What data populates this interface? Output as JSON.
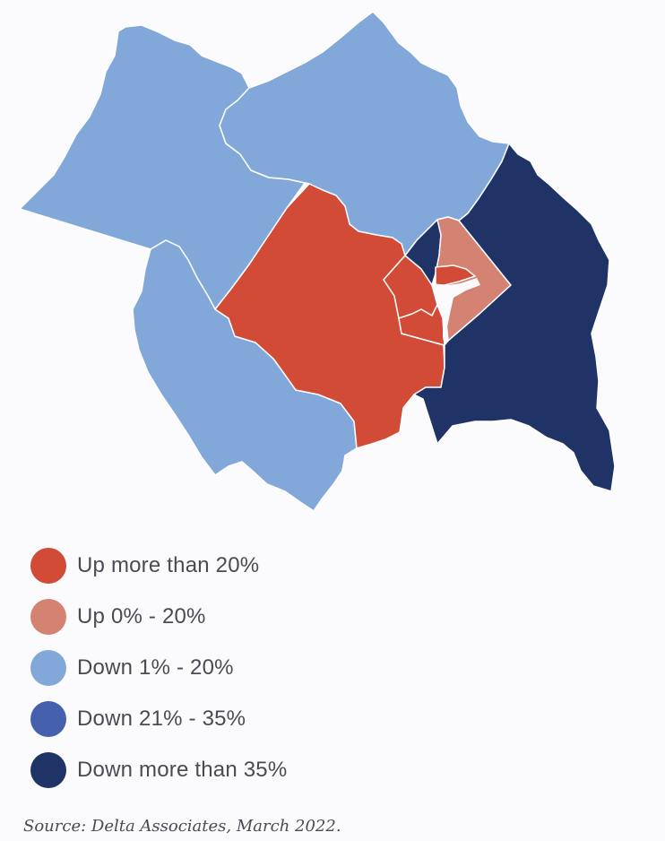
{
  "colors": {
    "up_more_than_20": "#d14b36",
    "up_0_20": "#d48373",
    "down_1_20": "#82a8d9",
    "down_21_35": "#4561ad",
    "down_more_than_35": "#1f3366",
    "border": "#ffffff",
    "background": "#fbfbfd"
  },
  "map": {
    "regions": [
      {
        "id": "loudoun",
        "category": "down_1_20"
      },
      {
        "id": "montgomery",
        "category": "down_1_20"
      },
      {
        "id": "prince-william",
        "category": "down_1_20"
      },
      {
        "id": "fairfax",
        "category": "up_more_than_20"
      },
      {
        "id": "arlington",
        "category": "up_more_than_20"
      },
      {
        "id": "alexandria",
        "category": "up_more_than_20"
      },
      {
        "id": "dc-ward-northwest",
        "category": "down_more_than_35"
      },
      {
        "id": "dc-wards-center",
        "category": "up_0_20"
      },
      {
        "id": "dc-downtown",
        "category": "up_more_than_20"
      },
      {
        "id": "prince-georges",
        "category": "down_more_than_35"
      }
    ]
  },
  "legend": {
    "items": [
      {
        "label": "Up more than 20%",
        "color": "#d14b36"
      },
      {
        "label": "Up 0% - 20%",
        "color": "#d48373"
      },
      {
        "label": "Down 1% - 20%",
        "color": "#82a8d9"
      },
      {
        "label": "Down 21% - 35%",
        "color": "#4561ad"
      },
      {
        "label": "Down more than 35%",
        "color": "#1f3366"
      }
    ]
  },
  "source": "Source: Delta Associates, March 2022."
}
